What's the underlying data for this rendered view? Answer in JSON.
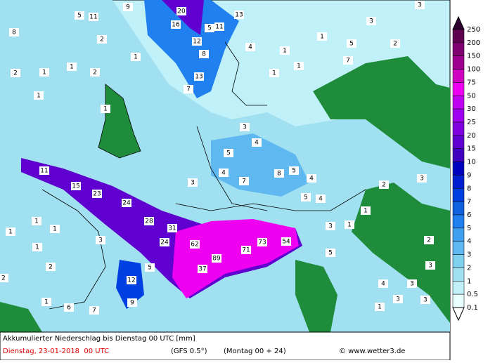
{
  "map_labels": [
    9,
    5,
    11,
    20,
    13,
    16,
    5,
    11,
    8,
    2,
    12,
    8,
    4,
    1,
    1,
    3,
    5,
    2,
    3,
    7,
    1,
    2,
    1,
    1,
    2,
    13,
    7,
    1,
    1,
    1,
    1,
    3,
    4,
    5,
    4,
    7,
    8,
    5,
    4,
    5,
    4,
    2,
    3,
    3,
    11,
    15,
    23,
    24,
    28,
    31,
    24,
    62,
    89,
    71,
    73,
    54,
    37,
    5,
    12,
    9,
    3,
    5,
    1,
    1,
    1,
    1,
    3,
    2,
    6,
    7,
    2,
    1,
    2,
    3,
    3,
    4,
    3,
    1,
    3,
    1,
    1
  ],
  "legend": {
    "labels": [
      "250",
      "200",
      "150",
      "100",
      "75",
      "50",
      "30",
      "25",
      "20",
      "15",
      "10",
      "9",
      "8",
      "7",
      "6",
      "5",
      "4",
      "3",
      "2",
      "1",
      "0.5",
      "0.1"
    ],
    "colors": [
      "#300030",
      "#600050",
      "#800070",
      "#a00090",
      "#d000c0",
      "#f000f0",
      "#c000f0",
      "#a000f0",
      "#8000e0",
      "#6000d0",
      "#4000c0",
      "#0000c0",
      "#0020d0",
      "#0040e0",
      "#1060e0",
      "#2080f0",
      "#40a0f0",
      "#60b8f0",
      "#80d0f0",
      "#a0e0f0",
      "#c0f0f8",
      "#e8ffff"
    ]
  },
  "footer": {
    "title": "Akkumulierter Niederschlag bis Dienstag 00 UTC [mm]",
    "date": "Dienstag, 23-01-2018  00 UTC",
    "model": "(GFS 0.5°)",
    "run": "(Montag 00 + 24)",
    "credit": "© www.wetter3.de"
  }
}
